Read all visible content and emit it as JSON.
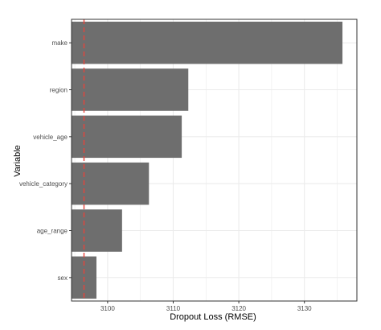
{
  "chart_data": {
    "type": "bar",
    "orientation": "horizontal",
    "categories": [
      "make",
      "region",
      "vehicle_age",
      "vehicle_category",
      "age_range",
      "sex"
    ],
    "values": [
      3135.8,
      3112.3,
      3111.3,
      3106.3,
      3102.2,
      3098.3
    ],
    "title": "",
    "xlabel": "Dropout Loss (RMSE)",
    "ylabel": "Variable",
    "xlim": [
      3094.5,
      3138.0
    ],
    "xticks": [
      3100,
      3110,
      3120,
      3130
    ],
    "xtick_labels": [
      "3100",
      "3110",
      "3120",
      "3130"
    ],
    "reference_line": {
      "value": 3096.4,
      "style": "dashed",
      "color": "#e8433a"
    },
    "bar_color": "#6e6e6e",
    "grid": true,
    "panel_border_color": "#333333",
    "grid_color": "#ebebeb"
  }
}
